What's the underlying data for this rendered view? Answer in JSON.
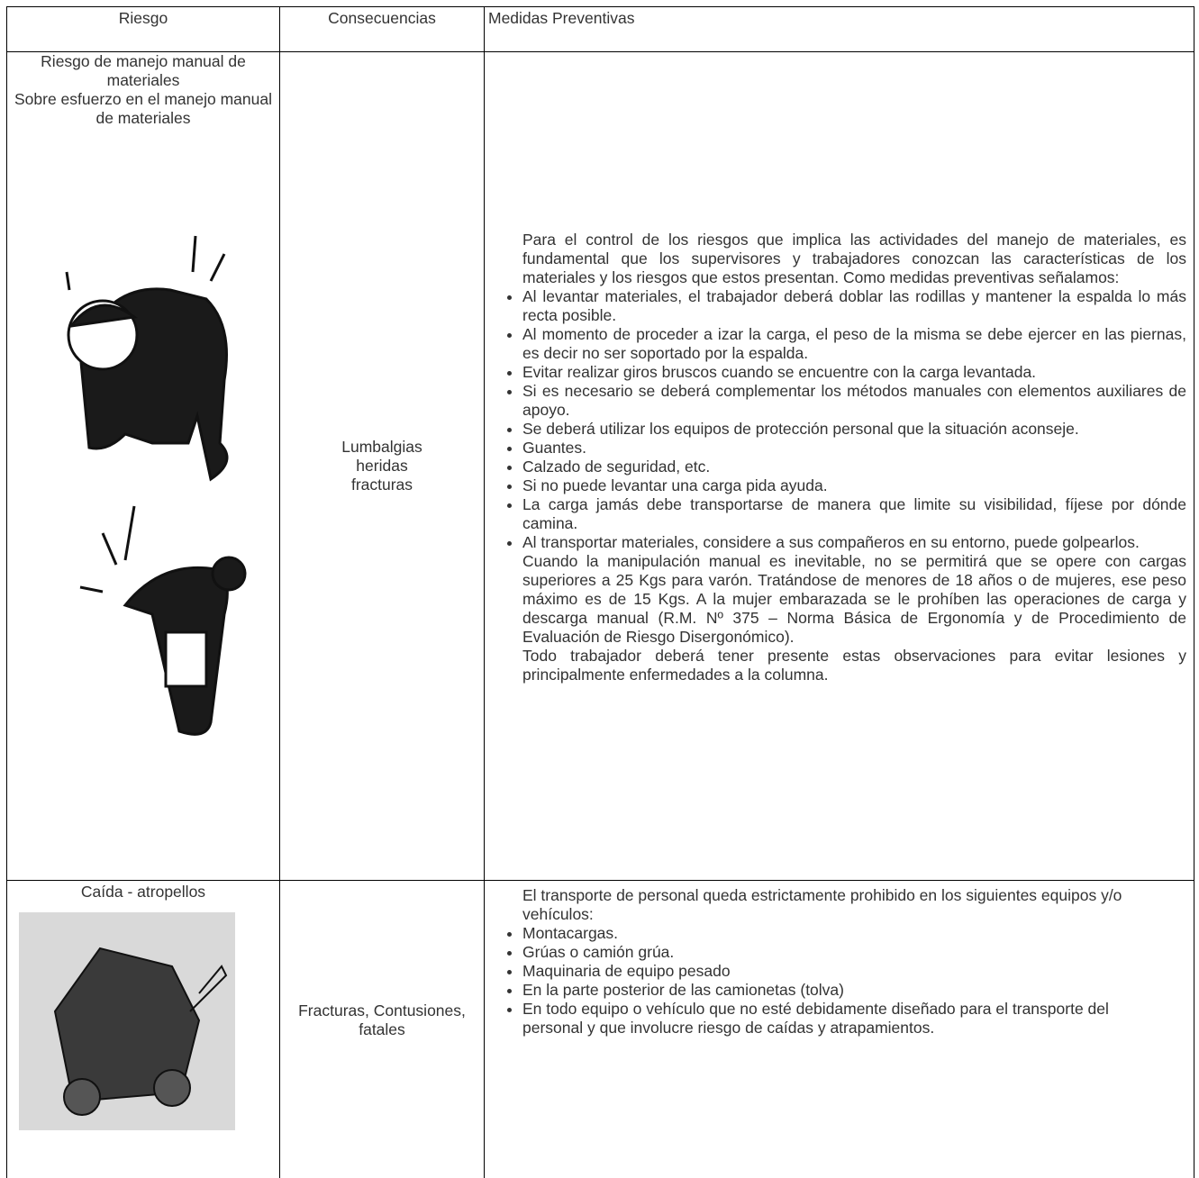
{
  "table": {
    "headers": [
      "Riesgo",
      "Consecuencias",
      "Medidas Preventivas"
    ],
    "rows": [
      {
        "riesgo": [
          "Riesgo de manejo manual de materiales",
          "Sobre esfuerzo en el manejo manual de materiales"
        ],
        "consecuencias": [
          "Lumbalgias",
          "heridas",
          "fracturas"
        ],
        "medidas": {
          "intro": "Para el control de los riesgos que implica las actividades del manejo de materiales, es fundamental que los supervisores y trabajadores conozcan las características de los materiales y los riesgos que estos presentan. Como medidas preventivas señalamos:",
          "bullets": [
            "Al levantar materiales, el trabajador deberá doblar las rodillas y mantener la espalda lo más recta posible.",
            "Al momento de proceder a izar la carga, el peso de la misma se debe ejercer en las piernas, es decir no ser soportado por la espalda.",
            "Evitar realizar giros bruscos cuando se encuentre con la carga levantada.",
            "Si es necesario se deberá complementar los métodos manuales con elementos auxiliares de apoyo.",
            "Se deberá utilizar los equipos de protección personal que la situación aconseje.",
            "Guantes.",
            "Calzado de seguridad, etc.",
            "Si no puede levantar una carga pida ayuda.",
            "La carga jamás debe transportarse de manera que limite su visibilidad, fíjese por dónde camina.",
            "Al transportar materiales, considere a sus compañeros en su entorno, puede golpearlos."
          ],
          "closing": [
            "Cuando la manipulación manual es inevitable, no se permitirá que se opere con cargas superiores a 25 Kgs para varón. Tratándose de menores de 18 años o de mujeres, ese peso máximo es de 15 Kgs. A la mujer embarazada se le prohíben las operaciones de carga y descarga manual (R.M. Nº 375 – Norma Básica de Ergonomía y de Procedimiento de Evaluación de Riesgo Disergonómico).",
            "Todo trabajador deberá tener presente estas observaciones para evitar lesiones y principalmente enfermedades a la columna."
          ]
        }
      },
      {
        "riesgo": [
          "Caída - atropellos"
        ],
        "consecuencias": [
          "Fracturas, Contusiones, fatales"
        ],
        "medidas": {
          "intro": "El transporte de personal queda estrictamente prohibido en los siguientes equipos y/o vehículos:",
          "bullets": [
            "Montacargas.",
            "Grúas o camión grúa.",
            "Maquinaria de equipo pesado",
            "En la parte posterior de las camionetas (tolva)",
            "En todo equipo o vehículo que no esté debidamente diseñado para el transporte del personal y que involucre riesgo de caídas y atrapamientos."
          ]
        }
      }
    ]
  }
}
